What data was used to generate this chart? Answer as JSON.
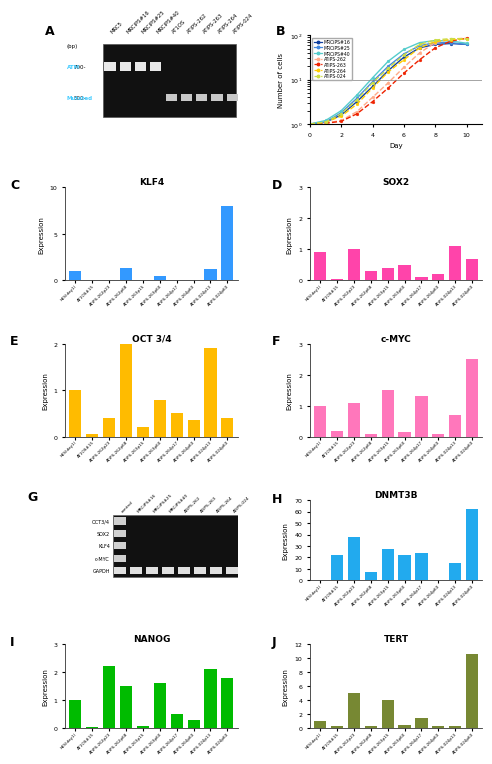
{
  "panel_A": {
    "lane_labels": [
      "MRC5",
      "MRCiPS#16",
      "MRCiPS#25",
      "MRCiPS#40",
      "AT1OS",
      "ATiPS-262",
      "ATiPS-263",
      "ATiPS-264",
      "ATiPS-024"
    ],
    "atm_pattern": [
      1,
      1,
      1,
      1,
      0,
      0,
      0,
      0,
      0
    ],
    "mutated_pattern": [
      0,
      0,
      0,
      0,
      1,
      1,
      1,
      1,
      1
    ]
  },
  "panel_B": {
    "xlabel": "Day",
    "ylabel": "Number of cells",
    "days": [
      0,
      1,
      2,
      3,
      4,
      5,
      6,
      7,
      8,
      9,
      10
    ],
    "series_order": [
      "MRCiPS#16",
      "MRCiPS#25",
      "MRCiPS#40",
      "ATiPS-262",
      "ATiPS-263",
      "ATiPS-264",
      "ATiPS-024"
    ],
    "series": {
      "MRCiPS#16": {
        "color": "#1040A0",
        "dashed": false,
        "data": [
          1.0,
          1.1,
          1.6,
          3.2,
          7.0,
          16.0,
          32.0,
          52.0,
          62.0,
          65.0,
          62.0
        ]
      },
      "MRCiPS#25": {
        "color": "#4488DD",
        "dashed": false,
        "data": [
          1.0,
          1.1,
          1.8,
          3.8,
          9.0,
          20.0,
          38.0,
          58.0,
          68.0,
          68.0,
          62.0
        ]
      },
      "MRCiPS#40": {
        "color": "#55CCCC",
        "dashed": false,
        "data": [
          1.0,
          1.2,
          2.0,
          4.5,
          11.0,
          26.0,
          48.0,
          68.0,
          76.0,
          74.0,
          66.0
        ]
      },
      "ATiPS-262": {
        "color": "#FFAA88",
        "dashed": true,
        "data": [
          1.0,
          1.05,
          1.2,
          1.9,
          4.0,
          8.5,
          19.0,
          40.0,
          68.0,
          82.0,
          86.0
        ]
      },
      "ATiPS-263": {
        "color": "#EE2200",
        "dashed": true,
        "data": [
          1.0,
          1.04,
          1.15,
          1.7,
          3.2,
          6.5,
          14.0,
          28.0,
          52.0,
          74.0,
          85.0
        ]
      },
      "ATiPS-264": {
        "color": "#FFCC00",
        "dashed": true,
        "data": [
          1.0,
          1.1,
          1.5,
          2.8,
          6.5,
          15.0,
          28.0,
          52.0,
          72.0,
          80.0,
          82.0
        ]
      },
      "ATiPS-024": {
        "color": "#CCDD44",
        "dashed": true,
        "data": [
          1.0,
          1.1,
          1.7,
          3.5,
          8.5,
          18.0,
          36.0,
          62.0,
          78.0,
          84.0,
          82.0
        ]
      }
    }
  },
  "panel_C": {
    "title": "KLF4",
    "color": "#3399FF",
    "ylabel": "Expression",
    "ylim": [
      0,
      10
    ],
    "yticks": [
      0,
      5,
      10
    ],
    "categories": [
      "hES(day1)",
      "AT1OS#15",
      "ATiPS-262p23",
      "ATiPS-262p68",
      "ATiPS-263p15",
      "ATiPS-263p60",
      "ATiPS-264p17",
      "ATiPS-264p60",
      "ATiPS-024p13",
      "ATiPS-024p60"
    ],
    "values": [
      1.0,
      0.05,
      0.05,
      1.3,
      0.05,
      0.5,
      0.05,
      0.05,
      1.2,
      8.0
    ]
  },
  "panel_D": {
    "title": "SOX2",
    "color": "#FF44AA",
    "ylabel": "Expression",
    "ylim": [
      0,
      3
    ],
    "yticks": [
      0,
      1,
      2,
      3
    ],
    "categories": [
      "hES(day1)",
      "AT1OS#15",
      "ATiPS-262p23",
      "ATiPS-262p68",
      "ATiPS-263p15",
      "ATiPS-263p60",
      "ATiPS-264p17",
      "ATiPS-264p60",
      "ATiPS-024p13",
      "ATiPS-024p60"
    ],
    "values": [
      0.9,
      0.05,
      1.0,
      0.3,
      0.4,
      0.5,
      0.1,
      0.2,
      1.1,
      0.7
    ]
  },
  "panel_E": {
    "title": "OCT 3/4",
    "color": "#FFBB00",
    "ylabel": "Expression",
    "ylim": [
      0,
      2
    ],
    "yticks": [
      0,
      1,
      2
    ],
    "categories": [
      "hES(day1)",
      "AT1OS#15",
      "ATiPS-262p23",
      "ATiPS-262p68",
      "ATiPS-263p15",
      "ATiPS-263p60",
      "ATiPS-264p17",
      "ATiPS-264p60",
      "ATiPS-024p13",
      "ATiPS-024p60"
    ],
    "values": [
      1.0,
      0.05,
      0.4,
      2.0,
      0.2,
      0.8,
      0.5,
      0.35,
      1.9,
      0.4
    ]
  },
  "panel_F": {
    "title": "c-MYC",
    "color": "#FF77BB",
    "ylabel": "Expression",
    "ylim": [
      0,
      3
    ],
    "yticks": [
      0,
      1,
      2,
      3
    ],
    "categories": [
      "hES(day1)",
      "AT1OS#15",
      "ATiPS-262p23",
      "ATiPS-262p68",
      "ATiPS-263p15",
      "ATiPS-263p60",
      "ATiPS-264p17",
      "ATiPS-264p60",
      "ATiPS-024p13",
      "ATiPS-024p60"
    ],
    "values": [
      1.0,
      0.2,
      1.1,
      0.1,
      1.5,
      0.15,
      1.3,
      0.1,
      0.7,
      2.5
    ]
  },
  "panel_G": {
    "lane_labels": [
      "control",
      "MRCiPS#16",
      "MRCiPS#25",
      "MRCiPS#40",
      "ATiPS-262",
      "ATiPS-263",
      "ATiPS-264",
      "ATiPS-024"
    ],
    "bands": [
      "OCT3/4",
      "SOX2",
      "KLF4",
      "c-MYC",
      "GAPDH"
    ],
    "band_pattern": {
      "OCT3/4": [
        1,
        0,
        0,
        0,
        0,
        0,
        0,
        0
      ],
      "SOX2": [
        1,
        0,
        0,
        0,
        0,
        0,
        0,
        0
      ],
      "KLF4": [
        1,
        0,
        0,
        0,
        0,
        0,
        0,
        0
      ],
      "c-MYC": [
        1,
        0,
        0,
        0,
        0,
        0,
        0,
        0
      ],
      "GAPDH": [
        1,
        1,
        1,
        1,
        1,
        1,
        1,
        1
      ]
    }
  },
  "panel_H": {
    "title": "DNMT3B",
    "color": "#22AAEE",
    "ylabel": "Expression",
    "ylim": [
      0,
      70
    ],
    "yticks": [
      0,
      10,
      20,
      30,
      40,
      50,
      60,
      70
    ],
    "categories": [
      "hES(day1)",
      "AT1OS#15",
      "ATiPS-262p23",
      "ATiPS-262p68",
      "ATiPS-263p15",
      "ATiPS-263p60",
      "ATiPS-264p17",
      "ATiPS-264p60",
      "ATiPS-024p13",
      "ATiPS-024p60"
    ],
    "values": [
      0.5,
      22.0,
      38.0,
      7.0,
      27.0,
      22.0,
      24.0,
      0.5,
      15.0,
      62.0
    ]
  },
  "panel_I": {
    "title": "NANOG",
    "color": "#00BB00",
    "ylabel": "Expression",
    "ylim": [
      0,
      3
    ],
    "yticks": [
      0,
      1,
      2,
      3
    ],
    "categories": [
      "hES(day1)",
      "AT1OS#15",
      "ATiPS-262p23",
      "ATiPS-262p68",
      "ATiPS-263p15",
      "ATiPS-263p60",
      "ATiPS-264p17",
      "ATiPS-264p60",
      "ATiPS-024p13",
      "ATiPS-024p60"
    ],
    "values": [
      1.0,
      0.05,
      2.2,
      1.5,
      0.1,
      1.6,
      0.5,
      0.3,
      2.1,
      1.8
    ]
  },
  "panel_J": {
    "title": "TERT",
    "color": "#778833",
    "ylabel": "Expression",
    "ylim": [
      0,
      12
    ],
    "yticks": [
      0,
      2,
      4,
      6,
      8,
      10,
      12
    ],
    "categories": [
      "hES(day1)",
      "AT1OS#15",
      "ATiPS-262p23",
      "ATiPS-262p68",
      "ATiPS-263p15",
      "ATiPS-263p60",
      "ATiPS-264p17",
      "ATiPS-264p60",
      "ATiPS-024p13",
      "ATiPS-024p60"
    ],
    "values": [
      1.0,
      0.3,
      5.0,
      0.3,
      4.0,
      0.5,
      1.5,
      0.3,
      0.3,
      10.5
    ]
  }
}
